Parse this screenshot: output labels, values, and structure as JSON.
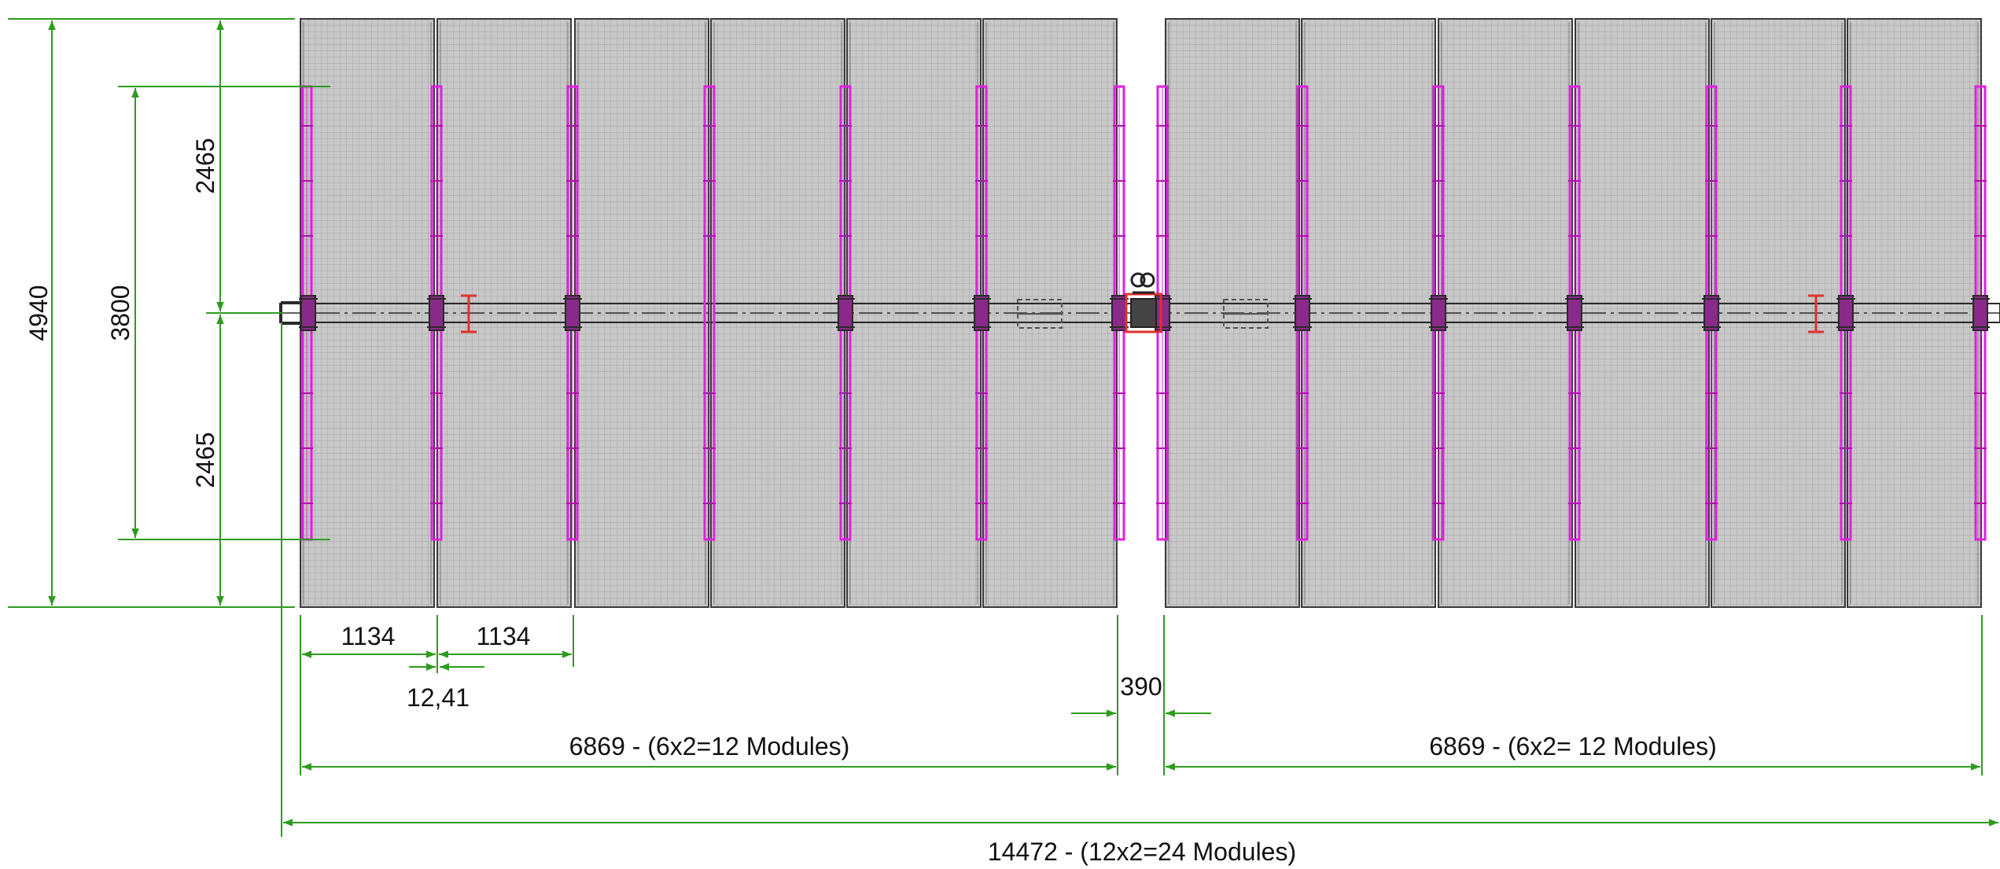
{
  "colors": {
    "dimension_line": "#2e9b1f",
    "module_fill": "#c8c8c8",
    "module_grid": "#9a9a9a",
    "module_outline": "#3a3a3a",
    "purlin": "#e020e0",
    "torque_tube": "#2a2a2a",
    "ibeam_red": "#e03030"
  },
  "dimensions": {
    "overall_height": "4940",
    "purlin_span": "3800",
    "upper_half": "2465",
    "lower_half": "2465",
    "module_width_left": "1134",
    "module_width_right": "1134",
    "module_gap": "12,41",
    "drive_gap": "390",
    "left_section": "6869 - (6x2=12 Modules)",
    "right_section": "6869 - (6x2= 12 Modules)",
    "total_length": "14472 - (12x2=24 Modules)"
  },
  "icons": {
    "pile": "i-beam-icon",
    "drive": "slewing-drive-icon",
    "damper": "damper-icon"
  }
}
